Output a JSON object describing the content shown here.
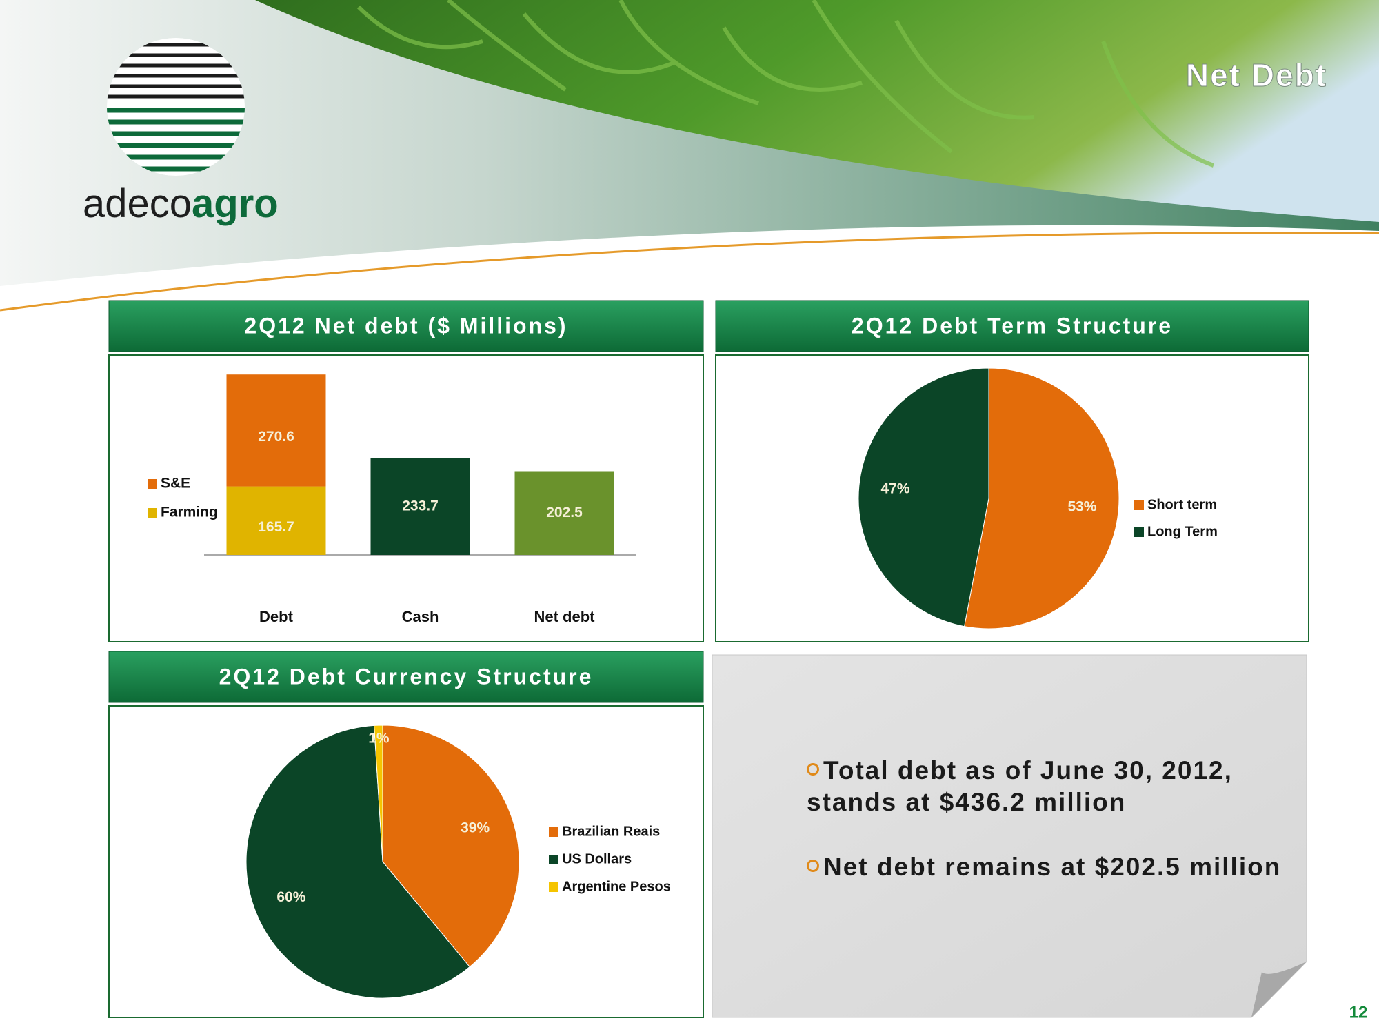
{
  "header": {
    "title": "Net Debt",
    "logo": [
      "adeco",
      "agro"
    ]
  },
  "chart_data": [
    {
      "type": "bar",
      "title": "2Q12 Net debt ($ Millions)",
      "categories": [
        "Debt",
        "Cash",
        "Net debt"
      ],
      "series": [
        {
          "name": "Farming",
          "color": "#e0b400",
          "values": [
            165.7,
            null,
            null
          ]
        },
        {
          "name": "S&E",
          "color": "#e36c0a",
          "values": [
            270.6,
            null,
            null
          ]
        },
        {
          "values": [
            null,
            233.7,
            202.5
          ],
          "colors": [
            null,
            "#0b4527",
            "#6a922c"
          ]
        }
      ],
      "ylim": [
        0,
        440
      ]
    },
    {
      "type": "pie",
      "title": "2Q12 Debt Term Structure",
      "categories": [
        "Short term",
        "Long Term"
      ],
      "values": [
        53,
        47
      ],
      "value_labels": [
        "53%",
        "47%"
      ],
      "colors": [
        "#e36c0a",
        "#0b4527"
      ]
    },
    {
      "type": "pie",
      "title": "2Q12 Debt Currency Structure",
      "categories": [
        "Brazilian Reais",
        "US Dollars",
        "Argentine Pesos"
      ],
      "values": [
        39,
        60,
        1
      ],
      "value_labels": [
        "39%",
        "60%",
        "1%"
      ],
      "colors": [
        "#e36c0a",
        "#0b4527",
        "#f5c400"
      ]
    }
  ],
  "notes": {
    "bullets": [
      "Total debt as of June 30, 2012, stands at $436.2 million",
      "Net debt remains at $202.5 million"
    ]
  },
  "page_number": "12"
}
